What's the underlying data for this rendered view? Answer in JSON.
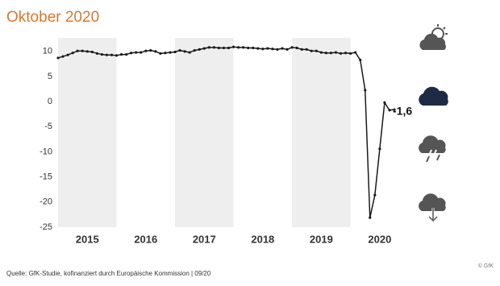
{
  "chart_data": {
    "type": "line",
    "title": "Oktober 2020",
    "source": "Quelle: GfK-Studie, kofinanziert durch Europäische Kommission | 09/20",
    "copyright": "© GfK",
    "annotation": "-1,6",
    "x": [
      2015,
      2015.083,
      2015.167,
      2015.25,
      2015.333,
      2015.417,
      2015.5,
      2015.583,
      2015.667,
      2015.75,
      2015.833,
      2015.917,
      2016,
      2016.083,
      2016.167,
      2016.25,
      2016.333,
      2016.417,
      2016.5,
      2016.583,
      2016.667,
      2016.75,
      2016.833,
      2016.917,
      2017,
      2017.083,
      2017.167,
      2017.25,
      2017.333,
      2017.417,
      2017.5,
      2017.583,
      2017.667,
      2017.75,
      2017.833,
      2017.917,
      2018,
      2018.083,
      2018.167,
      2018.25,
      2018.333,
      2018.417,
      2018.5,
      2018.583,
      2018.667,
      2018.75,
      2018.833,
      2018.917,
      2019,
      2019.083,
      2019.167,
      2019.25,
      2019.333,
      2019.417,
      2019.5,
      2019.583,
      2019.667,
      2019.75,
      2019.833,
      2019.917,
      2020,
      2020.083,
      2020.167,
      2020.25,
      2020.333,
      2020.417,
      2020.5,
      2020.583,
      2020.667,
      2020.75
    ],
    "series": [
      {
        "color": "#1a1a1a",
        "values": [
          8.7,
          9.0,
          9.3,
          9.7,
          10.1,
          10.1,
          10.0,
          9.9,
          9.6,
          9.4,
          9.3,
          9.3,
          9.2,
          9.4,
          9.4,
          9.7,
          9.8,
          9.8,
          10.1,
          10.2,
          10.0,
          9.6,
          9.7,
          9.8,
          9.9,
          10.2,
          10.0,
          9.8,
          10.2,
          10.4,
          10.6,
          10.8,
          10.8,
          10.7,
          10.7,
          10.7,
          10.9,
          10.8,
          10.8,
          10.7,
          10.7,
          10.6,
          10.5,
          10.6,
          10.5,
          10.4,
          10.6,
          10.4,
          10.8,
          10.7,
          10.4,
          10.4,
          10.1,
          10.1,
          9.8,
          9.7,
          9.7,
          9.8,
          9.6,
          9.7,
          9.6,
          9.8,
          8.3,
          2.3,
          -23.1,
          -18.6,
          -9.4,
          -0.2,
          -1.7,
          -1.6
        ]
      }
    ],
    "xlim": [
      2015,
      2020.75
    ],
    "xticks": [
      {
        "value": 2015.5,
        "label": "2015"
      },
      {
        "value": 2016.5,
        "label": "2016"
      },
      {
        "value": 2017.5,
        "label": "2017"
      },
      {
        "value": 2018.5,
        "label": "2018"
      },
      {
        "value": 2019.5,
        "label": "2019"
      },
      {
        "value": 2020.5,
        "label": "2020"
      }
    ],
    "ylim": [
      -25,
      12.7
    ],
    "yticks": [
      -25,
      -20,
      -15,
      -10,
      -5,
      0,
      5,
      10
    ]
  }
}
